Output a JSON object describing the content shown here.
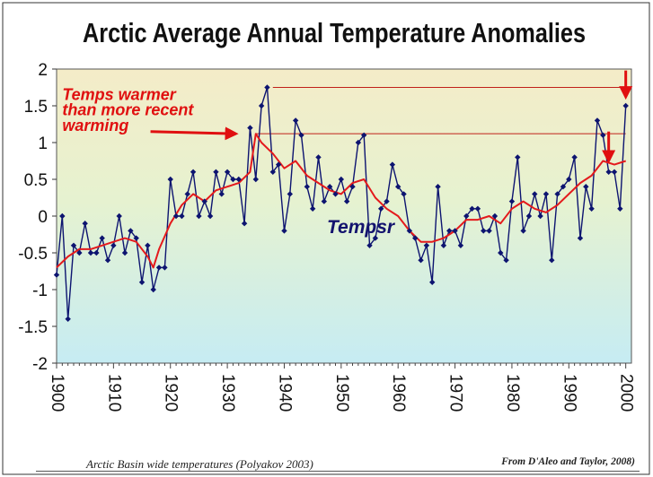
{
  "chart_data": {
    "type": "line",
    "title": "Arctic Average Annual Temperature Anomalies",
    "xlabel": "",
    "ylabel": "",
    "xlim": [
      1900,
      2001
    ],
    "ylim": [
      -2,
      2
    ],
    "y_ticks": [
      "2",
      "1.5",
      "1",
      "0.5",
      "0",
      "-0.5",
      "-1",
      "-1.5",
      "-2"
    ],
    "x_ticks": [
      "1900",
      "1910",
      "1920",
      "1930",
      "1940",
      "1950",
      "1960",
      "1970",
      "1980",
      "1990",
      "2000"
    ],
    "series": [
      {
        "name": "Tempsr",
        "style": "dark blue line with diamond markers",
        "x": [
          1900,
          1901,
          1902,
          1903,
          1904,
          1905,
          1906,
          1907,
          1908,
          1909,
          1910,
          1911,
          1912,
          1913,
          1914,
          1915,
          1916,
          1917,
          1918,
          1919,
          1920,
          1921,
          1922,
          1923,
          1924,
          1925,
          1926,
          1927,
          1928,
          1929,
          1930,
          1931,
          1932,
          1933,
          1934,
          1935,
          1936,
          1937,
          1938,
          1939,
          1940,
          1941,
          1942,
          1943,
          1944,
          1945,
          1946,
          1947,
          1948,
          1949,
          1950,
          1951,
          1952,
          1953,
          1954,
          1955,
          1956,
          1957,
          1958,
          1959,
          1960,
          1961,
          1962,
          1963,
          1964,
          1965,
          1966,
          1967,
          1968,
          1969,
          1970,
          1971,
          1972,
          1973,
          1974,
          1975,
          1976,
          1977,
          1978,
          1979,
          1980,
          1981,
          1982,
          1983,
          1984,
          1985,
          1986,
          1987,
          1988,
          1989,
          1990,
          1991,
          1992,
          1993,
          1994,
          1995,
          1996,
          1997,
          1998,
          1999,
          2000
        ],
        "values": [
          -0.8,
          0.0,
          -1.4,
          -0.4,
          -0.5,
          -0.1,
          -0.5,
          -0.5,
          -0.3,
          -0.6,
          -0.4,
          0.0,
          -0.5,
          -0.2,
          -0.3,
          -0.9,
          -0.4,
          -1.0,
          -0.7,
          -0.7,
          0.5,
          0.0,
          0.0,
          0.3,
          0.6,
          0.0,
          0.2,
          0.0,
          0.6,
          0.3,
          0.6,
          0.5,
          0.5,
          -0.1,
          1.2,
          0.5,
          1.5,
          1.75,
          0.6,
          0.7,
          -0.2,
          0.3,
          1.3,
          1.1,
          0.4,
          0.1,
          0.8,
          0.2,
          0.4,
          0.3,
          0.5,
          0.2,
          0.4,
          1.0,
          1.1,
          -0.4,
          -0.3,
          0.1,
          0.2,
          0.7,
          0.4,
          0.3,
          -0.2,
          -0.3,
          -0.6,
          -0.4,
          -0.9,
          0.4,
          -0.4,
          -0.2,
          -0.2,
          -0.4,
          0.0,
          0.1,
          0.1,
          -0.2,
          -0.2,
          0.0,
          -0.5,
          -0.6,
          0.2,
          0.8,
          -0.2,
          0.0,
          0.3,
          0.0,
          0.3,
          -0.6,
          0.3,
          0.4,
          0.5,
          0.8,
          -0.3,
          0.4,
          0.1,
          1.3,
          1.1,
          0.6,
          0.6,
          0.1,
          1.5
        ]
      },
      {
        "name": "",
        "style": "red smoothed line",
        "x": [
          1900,
          1902,
          1904,
          1906,
          1908,
          1910,
          1912,
          1914,
          1916,
          1917,
          1918,
          1920,
          1922,
          1924,
          1926,
          1928,
          1930,
          1932,
          1934,
          1935,
          1936,
          1938,
          1940,
          1942,
          1944,
          1946,
          1948,
          1950,
          1952,
          1954,
          1956,
          1958,
          1960,
          1962,
          1964,
          1966,
          1968,
          1970,
          1972,
          1974,
          1976,
          1978,
          1980,
          1982,
          1984,
          1986,
          1988,
          1990,
          1992,
          1994,
          1996,
          1998,
          2000
        ],
        "values": [
          -0.7,
          -0.55,
          -0.45,
          -0.45,
          -0.4,
          -0.35,
          -0.3,
          -0.35,
          -0.55,
          -0.7,
          -0.45,
          -0.1,
          0.15,
          0.3,
          0.2,
          0.35,
          0.4,
          0.45,
          0.6,
          1.12,
          1.0,
          0.85,
          0.65,
          0.75,
          0.55,
          0.45,
          0.35,
          0.3,
          0.45,
          0.5,
          0.25,
          0.1,
          0.0,
          -0.2,
          -0.35,
          -0.35,
          -0.3,
          -0.2,
          -0.05,
          -0.05,
          0.0,
          -0.1,
          0.1,
          0.2,
          0.1,
          0.05,
          0.15,
          0.3,
          0.45,
          0.55,
          0.75,
          0.7,
          0.75
        ]
      }
    ],
    "reference_lines": [
      {
        "value": 1.75,
        "from": 1938,
        "to": 2000
      },
      {
        "value": 1.12,
        "from": 1935,
        "to": 2000
      }
    ],
    "annotations": [
      {
        "text": "Temps warmer",
        "x": 1901,
        "y": 1.58,
        "color": "#e01010"
      },
      {
        "text": "than more recent",
        "x": 1901,
        "y": 1.37,
        "color": "#e01010"
      },
      {
        "text": "warming",
        "x": 1901,
        "y": 1.16,
        "color": "#e01010"
      },
      {
        "text": "Tempsr",
        "x": 1947.5,
        "y": -0.23,
        "color": "#13136e"
      }
    ],
    "arrows": [
      {
        "x1": 1916.5,
        "y1": 1.15,
        "x2": 1931.5,
        "y2": 1.12
      },
      {
        "x1": 2000,
        "y1": 1.98,
        "x2": 2000,
        "y2": 1.62
      },
      {
        "x1": 1997,
        "y1": 1.15,
        "x2": 1997,
        "y2": 0.75
      }
    ],
    "colors": {
      "title": "#111111",
      "tempsr_line": "#0d1470",
      "smooth_line": "#e41a1c",
      "annotation": "#e01010",
      "background_top": "#f2ecc8",
      "background_bottom": "#c8eef2"
    },
    "grid": false,
    "legend": "none"
  },
  "footer": {
    "left": "Arctic Basin wide temperatures (Polyakov 2003)",
    "right": "From D'Aleo and Taylor, 2008)"
  }
}
